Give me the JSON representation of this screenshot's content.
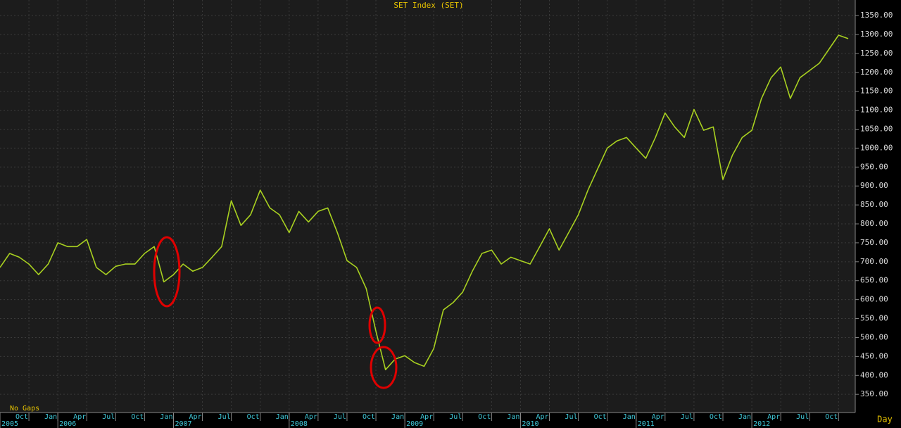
{
  "chart_data": {
    "type": "line",
    "title": "SET Index (SET)",
    "annotations": {
      "gaps": "No Gaps",
      "period": "Day"
    },
    "x": [
      "2005-07",
      "2005-08",
      "2005-09",
      "2005-10",
      "2005-11",
      "2005-12",
      "2006-01",
      "2006-02",
      "2006-03",
      "2006-04",
      "2006-05",
      "2006-06",
      "2006-07",
      "2006-08",
      "2006-09",
      "2006-10",
      "2006-11",
      "2006-12",
      "2007-01",
      "2007-02",
      "2007-03",
      "2007-04",
      "2007-05",
      "2007-06",
      "2007-07",
      "2007-08",
      "2007-09",
      "2007-10",
      "2007-11",
      "2007-12",
      "2008-01",
      "2008-02",
      "2008-03",
      "2008-04",
      "2008-05",
      "2008-06",
      "2008-07",
      "2008-08",
      "2008-09",
      "2008-10",
      "2008-11",
      "2008-12",
      "2009-01",
      "2009-02",
      "2009-03",
      "2009-04",
      "2009-05",
      "2009-06",
      "2009-07",
      "2009-08",
      "2009-09",
      "2009-10",
      "2009-11",
      "2009-12",
      "2010-01",
      "2010-02",
      "2010-03",
      "2010-04",
      "2010-05",
      "2010-06",
      "2010-07",
      "2010-08",
      "2010-09",
      "2010-10",
      "2010-11",
      "2010-12",
      "2011-01",
      "2011-02",
      "2011-03",
      "2011-04",
      "2011-05",
      "2011-06",
      "2011-07",
      "2011-08",
      "2011-09",
      "2011-10",
      "2011-11",
      "2011-12",
      "2012-01",
      "2012-02",
      "2012-03",
      "2012-04",
      "2012-05",
      "2012-06",
      "2012-07",
      "2012-08",
      "2012-09",
      "2012-10",
      "2012-11"
    ],
    "series": [
      {
        "color": "#a8d020",
        "values": [
          685,
          722,
          712,
          694,
          666,
          694,
          750,
          740,
          740,
          759,
          685,
          666,
          688,
          694,
          694,
          722,
          740,
          647,
          666,
          694,
          675,
          685,
          712,
          740,
          861,
          796,
          824,
          889,
          842,
          824,
          777,
          833,
          805,
          833,
          842,
          777,
          703,
          685,
          629,
          517,
          415,
          443,
          452,
          434,
          424,
          471,
          573,
          592,
          620,
          675,
          722,
          731,
          694,
          712,
          703,
          694,
          740,
          787,
          731,
          777,
          824,
          889,
          945,
          1000,
          1019,
          1028,
          1000,
          973,
          1028,
          1093,
          1056,
          1028,
          1102,
          1047,
          1056,
          917,
          982,
          1028,
          1047,
          1131,
          1186,
          1214,
          1131,
          1186,
          1205,
          1224,
          1261,
          1298,
          1289
        ]
      }
    ],
    "xlim": [
      "2005-07",
      "2012-11"
    ],
    "xticks": [
      {
        "value": "2005-10",
        "label": "Oct"
      },
      {
        "value": "2006-01",
        "label": "Jan"
      },
      {
        "value": "2006-04",
        "label": "Apr"
      },
      {
        "value": "2006-07",
        "label": "Jul"
      },
      {
        "value": "2006-10",
        "label": "Oct"
      },
      {
        "value": "2007-01",
        "label": "Jan"
      },
      {
        "value": "2007-04",
        "label": "Apr"
      },
      {
        "value": "2007-07",
        "label": "Jul"
      },
      {
        "value": "2007-10",
        "label": "Oct"
      },
      {
        "value": "2008-01",
        "label": "Jan"
      },
      {
        "value": "2008-04",
        "label": "Apr"
      },
      {
        "value": "2008-07",
        "label": "Jul"
      },
      {
        "value": "2008-10",
        "label": "Oct"
      },
      {
        "value": "2009-01",
        "label": "Jan"
      },
      {
        "value": "2009-04",
        "label": "Apr"
      },
      {
        "value": "2009-07",
        "label": "Jul"
      },
      {
        "value": "2009-10",
        "label": "Oct"
      },
      {
        "value": "2010-01",
        "label": "Jan"
      },
      {
        "value": "2010-04",
        "label": "Apr"
      },
      {
        "value": "2010-07",
        "label": "Jul"
      },
      {
        "value": "2010-10",
        "label": "Oct"
      },
      {
        "value": "2011-01",
        "label": "Jan"
      },
      {
        "value": "2011-04",
        "label": "Apr"
      },
      {
        "value": "2011-07",
        "label": "Jul"
      },
      {
        "value": "2011-10",
        "label": "Oct"
      },
      {
        "value": "2012-01",
        "label": "Jan"
      },
      {
        "value": "2012-04",
        "label": "Apr"
      },
      {
        "value": "2012-07",
        "label": "Jul"
      },
      {
        "value": "2012-10",
        "label": "Oct"
      }
    ],
    "year_ticks": [
      {
        "value": "2005-07",
        "label": "2005"
      },
      {
        "value": "2006-01",
        "label": "2006"
      },
      {
        "value": "2007-01",
        "label": "2007"
      },
      {
        "value": "2008-01",
        "label": "2008"
      },
      {
        "value": "2009-01",
        "label": "2009"
      },
      {
        "value": "2010-01",
        "label": "2010"
      },
      {
        "value": "2011-01",
        "label": "2011"
      },
      {
        "value": "2012-01",
        "label": "2012"
      }
    ],
    "ylim": [
      302,
      1391
    ],
    "yticks": [
      {
        "value": 350,
        "label": "350.00"
      },
      {
        "value": 400,
        "label": "400.00"
      },
      {
        "value": 450,
        "label": "450.00"
      },
      {
        "value": 500,
        "label": "500.00"
      },
      {
        "value": 550,
        "label": "550.00"
      },
      {
        "value": 600,
        "label": "600.00"
      },
      {
        "value": 650,
        "label": "650.00"
      },
      {
        "value": 700,
        "label": "700.00"
      },
      {
        "value": 750,
        "label": "750.00"
      },
      {
        "value": 800,
        "label": "800.00"
      },
      {
        "value": 850,
        "label": "850.00"
      },
      {
        "value": 900,
        "label": "900.00"
      },
      {
        "value": 950,
        "label": "950.00"
      },
      {
        "value": 1000,
        "label": "1000.00"
      },
      {
        "value": 1050,
        "label": "1050.00"
      },
      {
        "value": 1100,
        "label": "1100.00"
      },
      {
        "value": 1150,
        "label": "1150.00"
      },
      {
        "value": 1200,
        "label": "1200.00"
      },
      {
        "value": 1250,
        "label": "1250.00"
      },
      {
        "value": 1300,
        "label": "1300.00"
      },
      {
        "value": 1350,
        "label": "1350.00"
      }
    ],
    "grid": true
  }
}
